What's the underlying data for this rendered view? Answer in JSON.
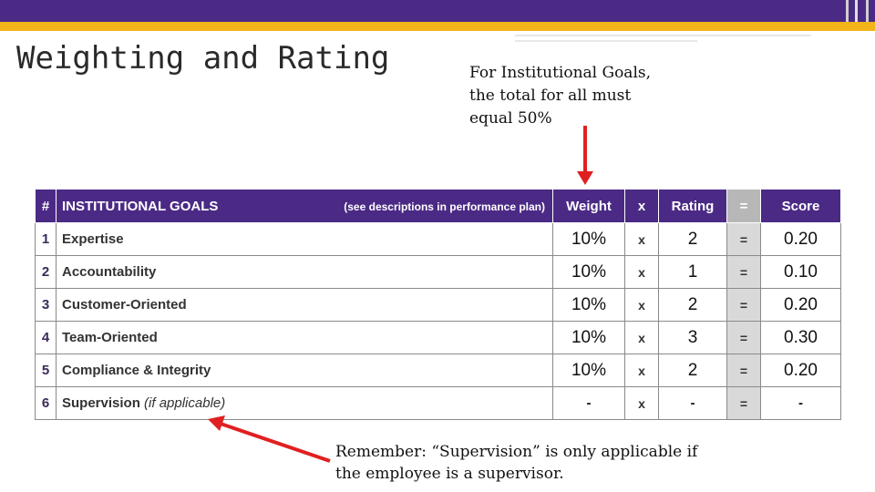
{
  "slide": {
    "title": "Weighting and Rating",
    "note_top": "For Institutional Goals, the total for all must equal 50%",
    "note_bottom": "Remember: “Supervision” is only applicable if the employee is a supervisor."
  },
  "colors": {
    "header_purple": "#4b2a86",
    "accent_gold": "#f2b418",
    "arrow_red": "#e02020",
    "equals_gray": "#d9d9d9"
  },
  "table": {
    "headers": {
      "hash": "#",
      "goal": "INSTITUTIONAL GOALS",
      "goal_sub": "(see descriptions in performance plan)",
      "weight": "Weight",
      "x": "x",
      "rating": "Rating",
      "eq": "=",
      "score": "Score"
    },
    "rows": [
      {
        "num": "1",
        "name": "Expertise",
        "aside": "",
        "weight": "10%",
        "x": "x",
        "rating": "2",
        "eq": "=",
        "score": "0.20"
      },
      {
        "num": "2",
        "name": "Accountability",
        "aside": "",
        "weight": "10%",
        "x": "x",
        "rating": "1",
        "eq": "=",
        "score": "0.10"
      },
      {
        "num": "3",
        "name": "Customer-Oriented",
        "aside": "",
        "weight": "10%",
        "x": "x",
        "rating": "2",
        "eq": "=",
        "score": "0.20"
      },
      {
        "num": "4",
        "name": "Team-Oriented",
        "aside": "",
        "weight": "10%",
        "x": "x",
        "rating": "3",
        "eq": "=",
        "score": "0.30"
      },
      {
        "num": "5",
        "name": "Compliance & Integrity",
        "aside": "",
        "weight": "10%",
        "x": "x",
        "rating": "2",
        "eq": "=",
        "score": "0.20"
      },
      {
        "num": "6",
        "name": "Supervision",
        "aside": "(if applicable)",
        "weight": "-",
        "x": "x",
        "rating": "-",
        "eq": "=",
        "score": "-"
      }
    ]
  }
}
